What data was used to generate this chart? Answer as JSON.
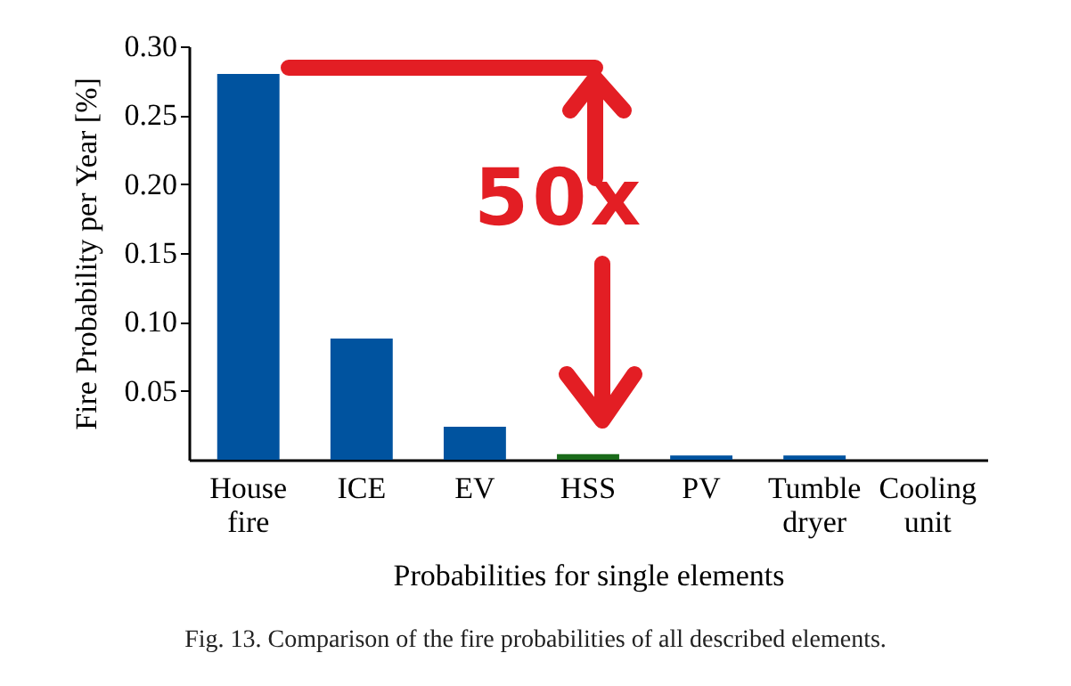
{
  "chart_data": {
    "type": "bar",
    "xlabel": "Probabilities for single elements",
    "ylabel": "Fire Probability per Year [%]",
    "categories": [
      "House fire",
      "ICE",
      "EV",
      "HSS",
      "PV",
      "Tumble dryer",
      "Cooling unit"
    ],
    "values": [
      0.28,
      0.088,
      0.024,
      0.004,
      0.003,
      0.003,
      0
    ],
    "colors": [
      "#00539f",
      "#00539f",
      "#00539f",
      "#1a6b1a",
      "#00539f",
      "#00539f",
      "#00539f"
    ],
    "ylim": [
      0,
      0.3
    ],
    "yticks": [
      0.05,
      {
        "value": 0.1,
        "label": "0.10"
      },
      0.15,
      {
        "value": 0.2,
        "label": "0.20"
      },
      0.25,
      {
        "value": 0.3,
        "label": "0.30"
      }
    ],
    "annotations": [
      "50x",
      "Fig. 13. Comparison of the fire probabilities of all described elements."
    ],
    "grid": false
  }
}
